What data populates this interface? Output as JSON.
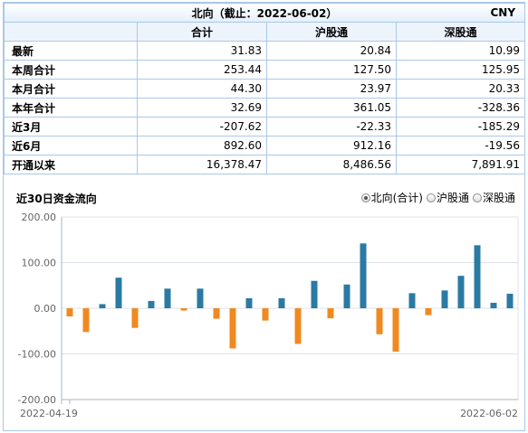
{
  "table": {
    "title": "北向（截止：2022-06-02）",
    "currency": "CNY",
    "columns": [
      "",
      "合计",
      "沪股通",
      "深股通"
    ],
    "rows": [
      {
        "label": "最新",
        "total": "31.83",
        "sh": "20.84",
        "sz": "10.99"
      },
      {
        "label": "本周合计",
        "total": "253.44",
        "sh": "127.50",
        "sz": "125.95"
      },
      {
        "label": "本月合计",
        "total": "44.30",
        "sh": "23.97",
        "sz": "20.33"
      },
      {
        "label": "本年合计",
        "total": "32.69",
        "sh": "361.05",
        "sz": "-328.36"
      },
      {
        "label": "近3月",
        "total": "-207.62",
        "sh": "-22.33",
        "sz": "-185.29"
      },
      {
        "label": "近6月",
        "total": "892.60",
        "sh": "912.16",
        "sz": "-19.56"
      },
      {
        "label": "开通以来",
        "total": "16,378.47",
        "sh": "8,486.56",
        "sz": "7,891.91"
      }
    ]
  },
  "chart_section": {
    "title": "近30日资金流向",
    "options": [
      {
        "label": "北向(合计)",
        "selected": true
      },
      {
        "label": "沪股通",
        "selected": false
      },
      {
        "label": "深股通",
        "selected": false
      }
    ]
  },
  "colors": {
    "positive": "#2a7aa3",
    "negative": "#f0891f"
  },
  "chart_data": {
    "type": "bar",
    "title": "近30日资金流向",
    "x_start_label": "2022-04-19",
    "x_end_label": "2022-06-02",
    "ylim": [
      -200,
      200
    ],
    "yticks": [
      "200.00",
      "100.00",
      "0.00",
      "-100.00",
      "-200.00"
    ],
    "grid": true,
    "values": [
      -18,
      -52,
      9,
      67,
      -43,
      16,
      43,
      -5,
      43,
      -23,
      -88,
      22,
      -27,
      22,
      -78,
      60,
      -22,
      52,
      142,
      -57,
      -95,
      33,
      -15,
      39,
      71,
      138,
      12,
      31.83
    ]
  }
}
